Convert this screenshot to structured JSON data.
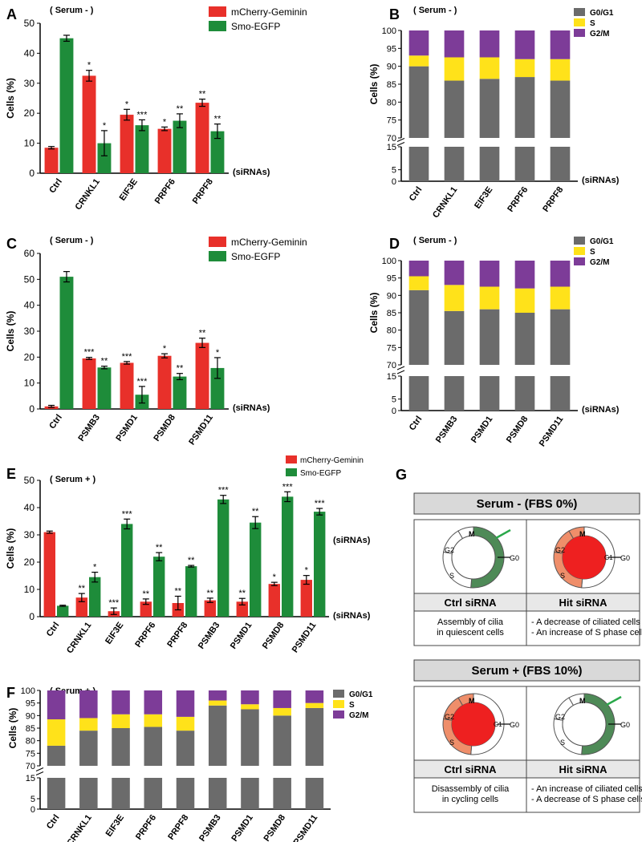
{
  "colors": {
    "red": "#E8302A",
    "green": "#1E8C3A",
    "gray": "#6B6B6B",
    "yellow": "#FFE21A",
    "purple": "#7D3C98",
    "panel_header": "#D9D9D9",
    "cycle_green": "#4E8A57",
    "cycle_salmon": "#EF8E6A",
    "cycle_red": "#EE2020"
  },
  "chart_data": [
    {
      "id": "A",
      "type": "bar",
      "panel_label": "A",
      "condition": "( Serum - )",
      "ylabel": "Cells (%)",
      "xlabel": "(siRNAs)",
      "ylim": [
        0,
        50
      ],
      "yticks": [
        0,
        10,
        20,
        30,
        40,
        50
      ],
      "categories": [
        "Ctrl",
        "CRNKL1",
        "EIF3E",
        "PRPF6",
        "PRPF8"
      ],
      "series": [
        {
          "name": "mCherry-Geminin",
          "values": [
            8.5,
            32.5,
            19.5,
            14.8,
            23.5
          ],
          "errors": [
            0.4,
            1.8,
            1.8,
            0.6,
            1.2
          ],
          "stars": [
            "",
            "*",
            "*",
            "*",
            "**"
          ]
        },
        {
          "name": "Smo-EGFP",
          "values": [
            45,
            10,
            16,
            17.5,
            14
          ],
          "errors": [
            1.0,
            4.2,
            1.8,
            2.3,
            2.4
          ],
          "stars": [
            "",
            "*",
            "***",
            "**",
            "**"
          ]
        }
      ]
    },
    {
      "id": "B",
      "type": "bar",
      "stacked": true,
      "panel_label": "B",
      "condition": "( Serum - )",
      "ylabel": "Cells (%)",
      "xlabel": "(siRNAs)",
      "upper_range": [
        70,
        100
      ],
      "upper_ticks": [
        70,
        75,
        80,
        85,
        90,
        95,
        100
      ],
      "lower_range": [
        0,
        15
      ],
      "lower_ticks": [
        0,
        5,
        15
      ],
      "categories": [
        "Ctrl",
        "CRNKL1",
        "EIF3E",
        "PRPF6",
        "PRPF8"
      ],
      "series": [
        {
          "name": "G0/G1",
          "values": [
            90,
            86,
            86.5,
            87,
            86
          ]
        },
        {
          "name": "S",
          "values": [
            3,
            6.5,
            6,
            5,
            6
          ]
        },
        {
          "name": "G2/M",
          "values": [
            7,
            7.5,
            7.5,
            8,
            8
          ]
        }
      ]
    },
    {
      "id": "C",
      "type": "bar",
      "panel_label": "C",
      "condition": "( Serum - )",
      "ylabel": "Cells (%)",
      "xlabel": "(siRNAs)",
      "ylim": [
        0,
        60
      ],
      "yticks": [
        0,
        10,
        20,
        30,
        40,
        50,
        60
      ],
      "categories": [
        "Ctrl",
        "PSMB3",
        "PSMD1",
        "PSMD8",
        "PSMD11"
      ],
      "series": [
        {
          "name": "mCherry-Geminin",
          "values": [
            1,
            19.5,
            17.8,
            20.5,
            25.5
          ],
          "errors": [
            0.4,
            0.4,
            0.5,
            0.8,
            1.8
          ],
          "stars": [
            "",
            "***",
            "***",
            "*",
            "**"
          ]
        },
        {
          "name": "Smo-EGFP",
          "values": [
            51,
            16,
            5.5,
            12.5,
            15.8
          ],
          "errors": [
            2.0,
            0.5,
            3.2,
            1.2,
            4.0
          ],
          "stars": [
            "",
            "**",
            "***",
            "**",
            "*"
          ]
        }
      ]
    },
    {
      "id": "D",
      "type": "bar",
      "stacked": true,
      "panel_label": "D",
      "condition": "( Serum - )",
      "ylabel": "Cells (%)",
      "xlabel": "(siRNAs)",
      "upper_range": [
        70,
        100
      ],
      "upper_ticks": [
        70,
        75,
        80,
        85,
        90,
        95,
        100
      ],
      "lower_range": [
        0,
        15
      ],
      "lower_ticks": [
        0,
        5,
        15
      ],
      "categories": [
        "Ctrl",
        "PSMB3",
        "PSMD1",
        "PSMD8",
        "PSMD11"
      ],
      "series": [
        {
          "name": "G0/G1",
          "values": [
            91.5,
            85.5,
            86,
            85,
            86
          ]
        },
        {
          "name": "S",
          "values": [
            4,
            7.5,
            6.5,
            7,
            6.5
          ]
        },
        {
          "name": "G2/M",
          "values": [
            4.5,
            7,
            7.5,
            8,
            7.5
          ]
        }
      ]
    },
    {
      "id": "E",
      "type": "bar",
      "panel_label": "E",
      "condition": "( Serum + )",
      "ylabel": "Cells (%)",
      "xlabel": "(siRNAs)",
      "ylim": [
        0,
        50
      ],
      "yticks": [
        0,
        10,
        20,
        30,
        40,
        50
      ],
      "categories": [
        "Ctrl",
        "CRNKL1",
        "EIF3E",
        "PRPF6",
        "PRPF8",
        "PSMB3",
        "PSMD1",
        "PSMD8",
        "PSMD11"
      ],
      "series": [
        {
          "name": "mCherry-Geminin",
          "values": [
            31,
            7,
            2,
            5.5,
            5,
            6,
            5.5,
            12,
            13.5
          ],
          "errors": [
            0.4,
            1.5,
            1.2,
            1.0,
            2.5,
            0.8,
            1.2,
            0.6,
            1.6
          ],
          "stars": [
            "",
            "**",
            "***",
            "**",
            "**",
            "**",
            "**",
            "*",
            "*"
          ]
        },
        {
          "name": "Smo-EGFP",
          "values": [
            4,
            14.5,
            34,
            22,
            18.5,
            43,
            34.5,
            44,
            38.5
          ],
          "errors": [
            0.2,
            1.8,
            1.8,
            1.5,
            0.3,
            1.5,
            2.2,
            1.8,
            1.2
          ],
          "stars": [
            "",
            "*",
            "***",
            "**",
            "**",
            "***",
            "**",
            "***",
            "***"
          ]
        }
      ]
    },
    {
      "id": "F",
      "type": "bar",
      "stacked": true,
      "panel_label": "F",
      "condition": "( Serum + )",
      "ylabel": "Cells (%)",
      "xlabel": "(siRNAs)",
      "upper_range": [
        70,
        100
      ],
      "upper_ticks": [
        70,
        75,
        80,
        85,
        90,
        95,
        100
      ],
      "lower_range": [
        0,
        15
      ],
      "lower_ticks": [
        0,
        5,
        15
      ],
      "categories": [
        "Ctrl",
        "CRNKL1",
        "EIF3E",
        "PRPF6",
        "PRPF8",
        "PSMB3",
        "PSMD1",
        "PSMD8",
        "PSMD11"
      ],
      "series": [
        {
          "name": "G0/G1",
          "values": [
            78,
            84,
            85,
            85.5,
            84,
            94,
            92.5,
            90,
            93
          ]
        },
        {
          "name": "S",
          "values": [
            10.5,
            5,
            5.5,
            5,
            5.5,
            2,
            2,
            3,
            2
          ]
        },
        {
          "name": "G2/M",
          "values": [
            11.5,
            11,
            9.5,
            9.5,
            10.5,
            4,
            5.5,
            7,
            5
          ]
        }
      ]
    }
  ],
  "panel_g": {
    "label": "G",
    "serum_minus_title": "Serum - (FBS 0%)",
    "serum_plus_title": "Serum + (FBS 10%)",
    "ctrl_label": "Ctrl siRNA",
    "hit_label": "Hit siRNA",
    "phase_labels": {
      "m": "M",
      "g2": "G2",
      "s": "S",
      "g1": "G1",
      "g0": "G0"
    },
    "minus_ctrl_desc": [
      "Assembly of cilia",
      "in quiescent cells"
    ],
    "minus_hit_desc": [
      "- A decrease of ciliated cells",
      "- An increase of S phase cells"
    ],
    "plus_ctrl_desc": [
      "Disassembly of cilia",
      "in cycling cells"
    ],
    "plus_hit_desc": [
      "- An increase of ciliated cells",
      "- A decrease of S phase cells"
    ]
  }
}
